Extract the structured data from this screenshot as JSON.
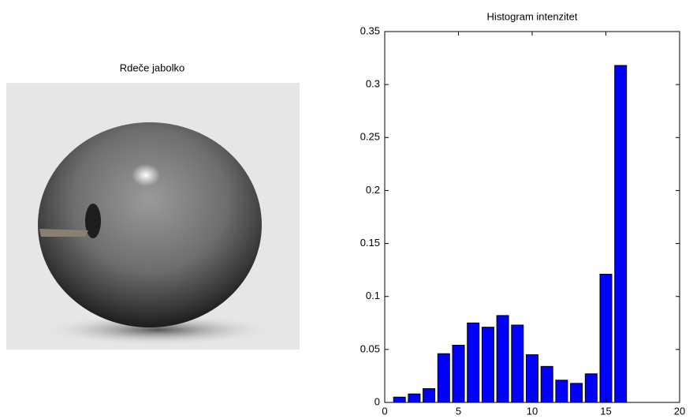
{
  "image_panel": {
    "title": "Rdeče jabolko"
  },
  "chart_data": {
    "type": "bar",
    "title": "Histogram intenzitet",
    "x": [
      1,
      2,
      3,
      4,
      5,
      6,
      7,
      8,
      9,
      10,
      11,
      12,
      13,
      14,
      15,
      16
    ],
    "values": [
      0.005,
      0.008,
      0.013,
      0.046,
      0.054,
      0.075,
      0.071,
      0.082,
      0.073,
      0.045,
      0.034,
      0.021,
      0.018,
      0.027,
      0.121,
      0.318
    ],
    "color": "#0000ff",
    "xlim": [
      0,
      20
    ],
    "xticks": [
      0,
      5,
      10,
      15,
      20
    ],
    "ylim": [
      0,
      0.35
    ],
    "yticks": [
      0,
      0.05,
      0.1,
      0.15,
      0.2,
      0.25,
      0.3,
      0.35
    ],
    "grid": false
  }
}
